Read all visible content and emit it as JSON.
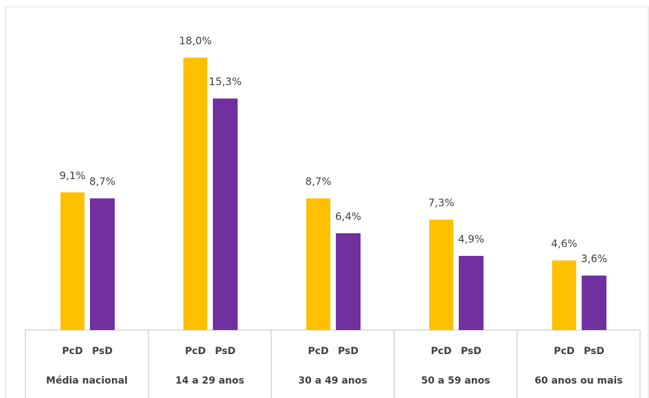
{
  "chart_data": {
    "type": "bar",
    "categories": [
      "Média nacional",
      "14 a 29 anos",
      "30 a 49 anos",
      "50 a 59 anos",
      "60 anos ou mais"
    ],
    "series": [
      {
        "name": "PcD",
        "color": "#FFC000",
        "values": [
          9.1,
          18.0,
          8.7,
          7.3,
          4.6
        ],
        "value_labels": [
          "9,1%",
          "18,0%",
          "8,7%",
          "7,3%",
          "4,6%"
        ]
      },
      {
        "name": "PsD",
        "color": "#7030A0",
        "values": [
          8.7,
          15.3,
          6.4,
          4.9,
          3.6
        ],
        "value_labels": [
          "8,7%",
          "15,3%",
          "6,4%",
          "4,9%",
          "3,6%"
        ]
      }
    ]
  }
}
